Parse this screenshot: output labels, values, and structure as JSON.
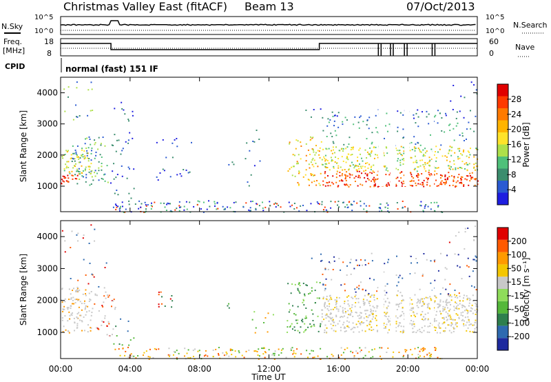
{
  "header": {
    "station": "Christmas Valley East (fitACF)",
    "beam": "Beam 13",
    "date": "07/Oct/2013"
  },
  "summary": {
    "nsky_label": "N.Sky",
    "nsky_ticks": [
      "10^5",
      "10^0"
    ],
    "nsearch_label": "N.Search",
    "nsearch_ticks": [
      "10^5",
      "10^0"
    ],
    "freq_label_line1": "Freq.",
    "freq_label_line2": "[MHz]",
    "freq_ticks": [
      "18",
      "8"
    ],
    "nave_label": "Nave",
    "nave_ticks": [
      "60",
      "0"
    ],
    "cpid_label": "CPID",
    "cpid_text": "normal (fast) 151 IF"
  },
  "chart_data": [
    {
      "type": "heatmap",
      "name": "power-panel",
      "ylabel": "Slant Range [km]",
      "xlabel": "Time UT",
      "xlim_hours": [
        0,
        24
      ],
      "ylim_km": [
        180,
        4500
      ],
      "y_ticks": [
        "1000",
        "2000",
        "3000",
        "4000"
      ],
      "colorbar_label": "Power [dB]",
      "colorbar_ticks": [
        "28",
        "24",
        "20",
        "16",
        "12",
        "8",
        "4"
      ],
      "colors": [
        "#1e1ee0",
        "#2a5ad2",
        "#3b8d6e",
        "#4fc07a",
        "#aee04a",
        "#ffe32a",
        "#ffb400",
        "#ff7a00",
        "#ff3a00",
        "#e00000"
      ]
    },
    {
      "type": "heatmap",
      "name": "velocity-panel",
      "ylabel": "Slant Range [km]",
      "xlabel": "Time UT",
      "xlim_hours": [
        0,
        24
      ],
      "ylim_km": [
        180,
        4500
      ],
      "y_ticks": [
        "1000",
        "2000",
        "3000",
        "4000"
      ],
      "colorbar_label": "Velocity [m s⁻¹]",
      "colorbar_ticks": [
        "200",
        "100",
        "50",
        "15",
        "-15",
        "-50",
        "-100",
        "-200"
      ],
      "colors": [
        "#1e2a9e",
        "#2e6ab0",
        "#2e7f4e",
        "#55b83a",
        "#8fdc5a",
        "#c8c8c8",
        "#f4c600",
        "#ff9a00",
        "#ff5a00",
        "#e00000"
      ]
    }
  ],
  "x_ticks": [
    "00:00",
    "04:00",
    "08:00",
    "12:00",
    "16:00",
    "20:00",
    "00:00"
  ],
  "x_label": "Time UT"
}
